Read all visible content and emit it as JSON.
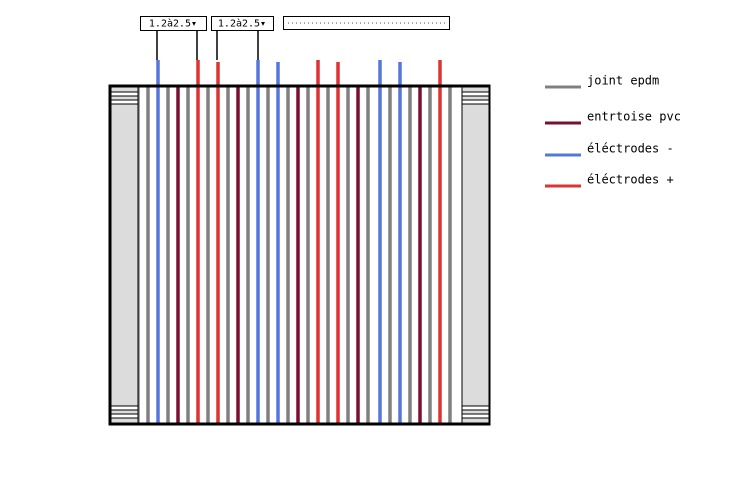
{
  "dropdowns": [
    {
      "label": "1.2à2.5▾"
    },
    {
      "label": "1.2à2.5▾"
    }
  ],
  "legend": [
    {
      "label": "joint epdm",
      "color": "#808080"
    },
    {
      "label": "entrtoise pvc",
      "color": "#7a1030"
    },
    {
      "label": "éléctrodes -",
      "color": "#5577dd"
    },
    {
      "label": "éléctrodes +",
      "color": "#dd3333"
    }
  ]
}
